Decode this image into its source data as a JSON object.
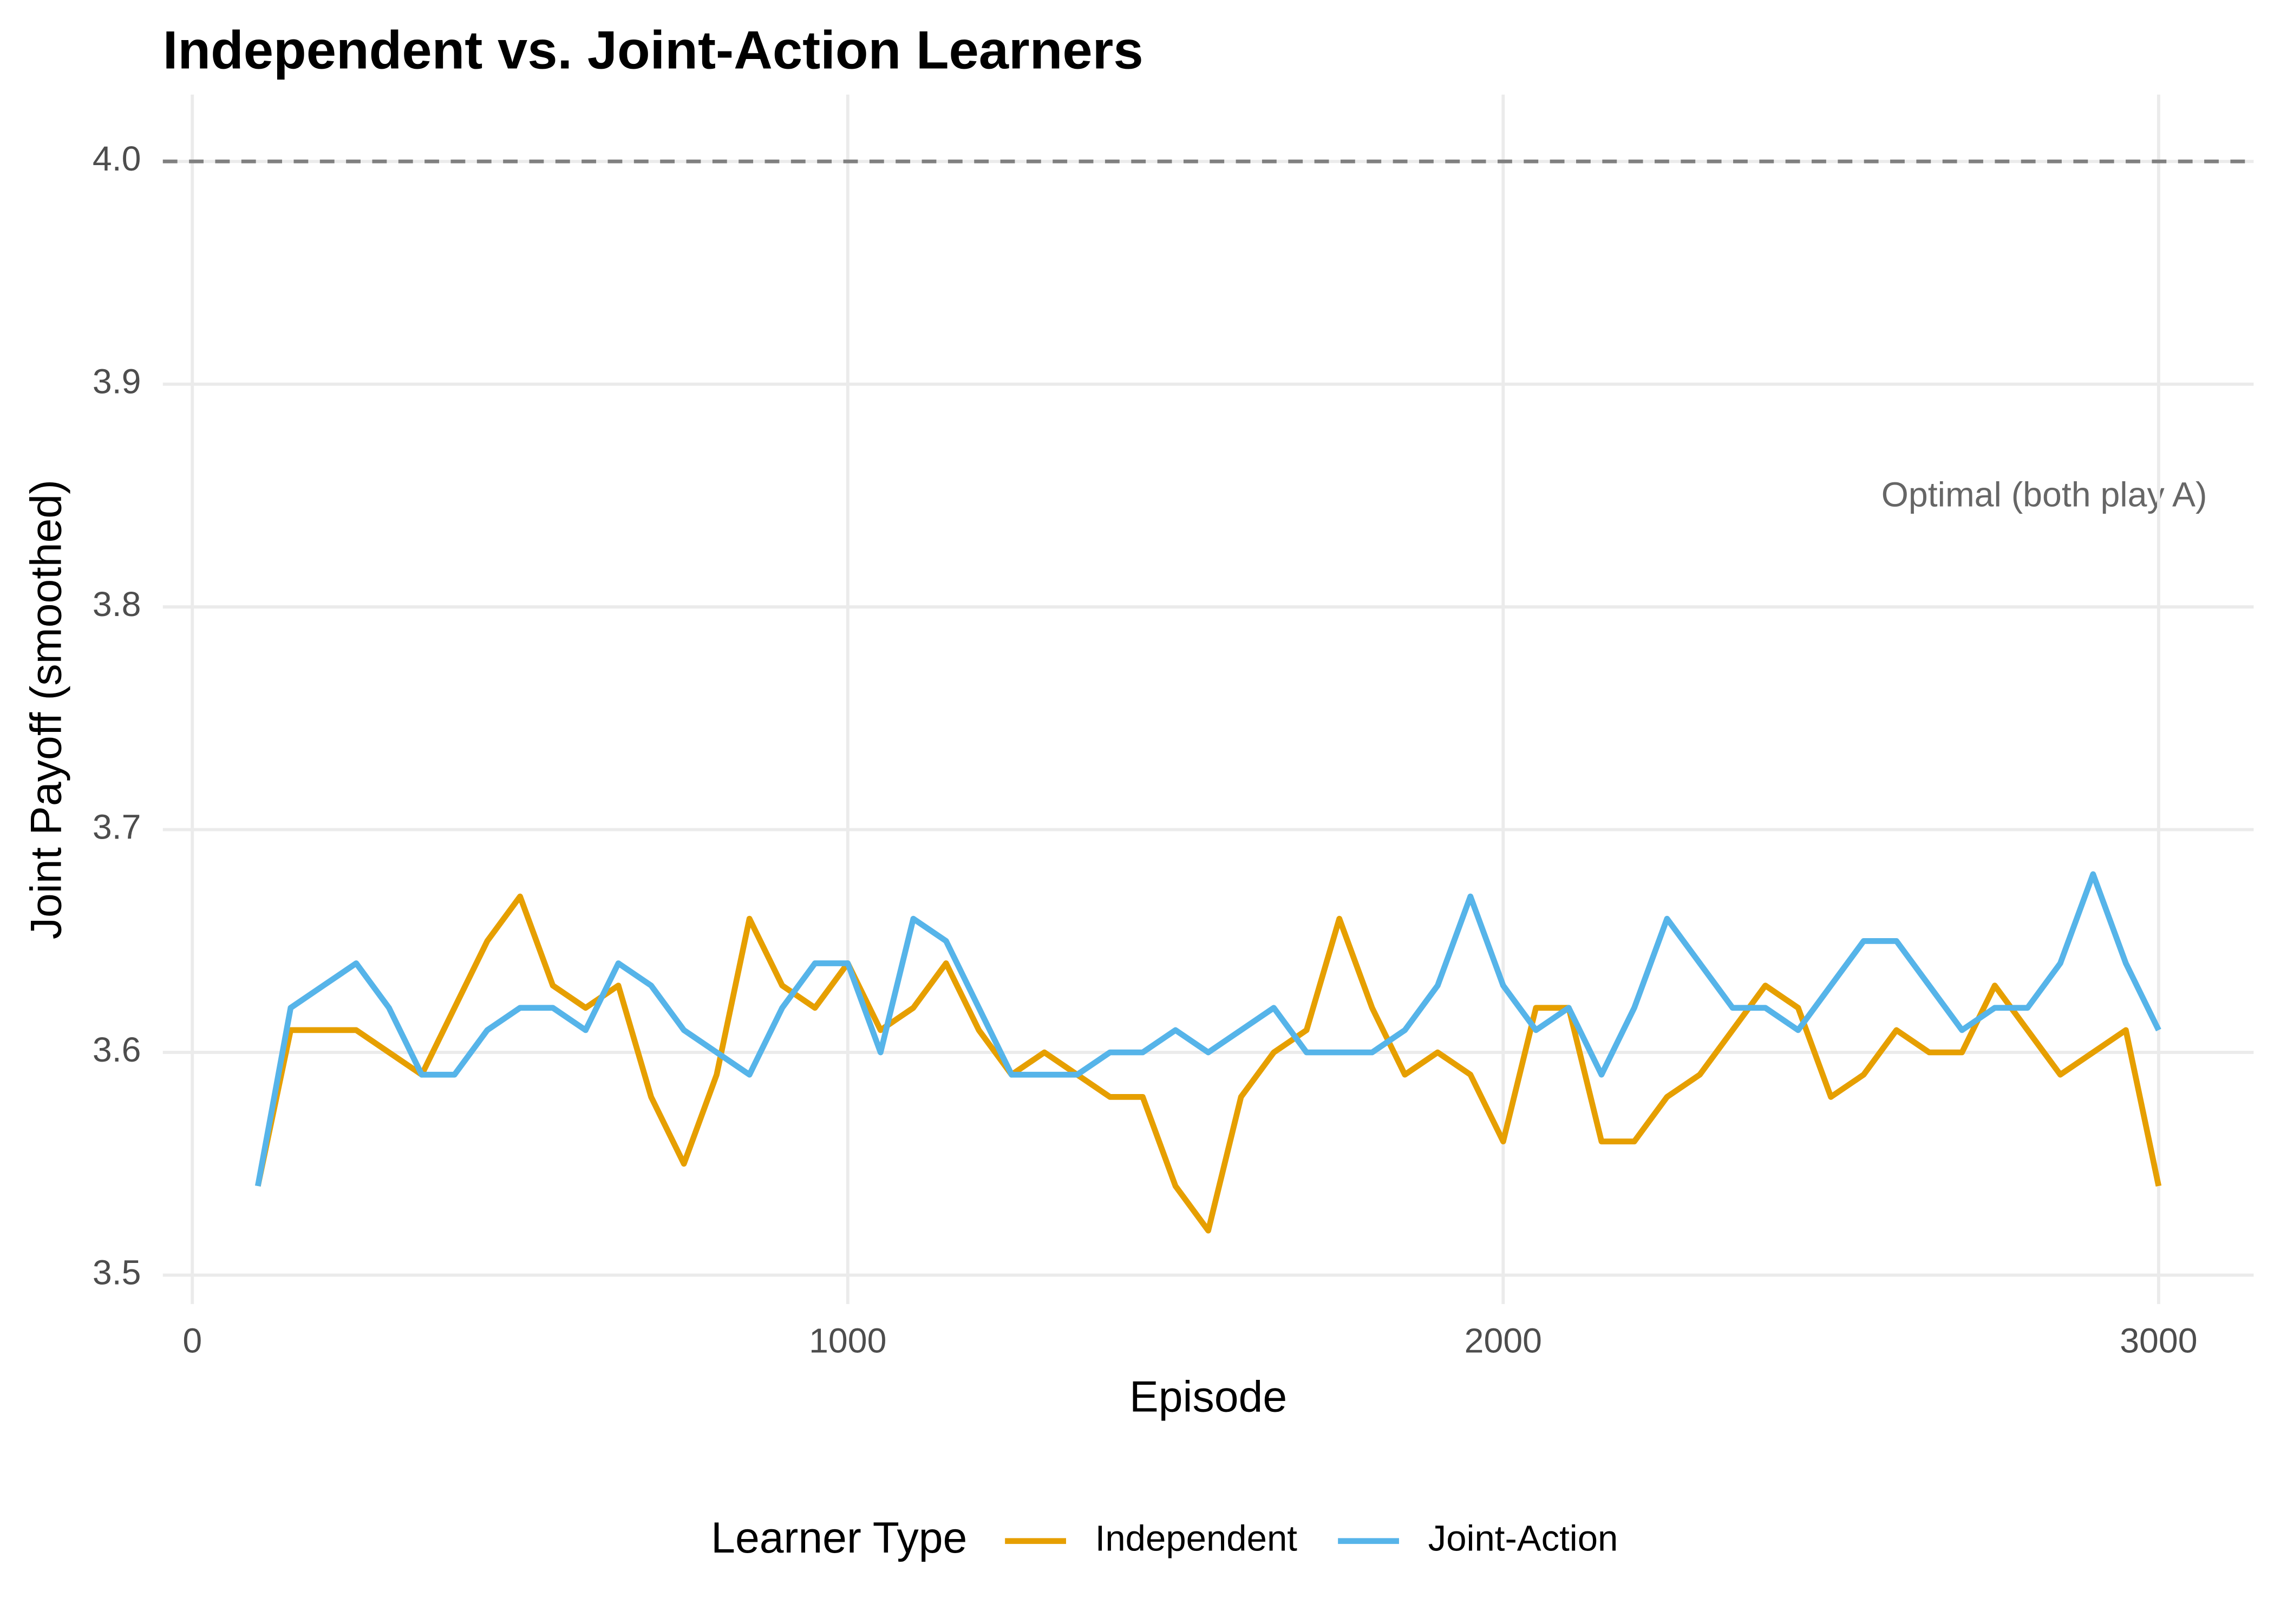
{
  "chart_data": {
    "type": "line",
    "title": "Independent vs. Joint-Action Learners",
    "x_label": "Episode",
    "y_label": "Joint Payoff (smoothed)",
    "legend_title": "Learner Type",
    "legend": "bottom",
    "grid": true,
    "annotation": "Optimal (both play A)",
    "hline": 4,
    "hline_color": "#808080",
    "xlim": [
      -45,
      3145
    ],
    "ylim": [
      3.487,
      4.03
    ],
    "xticks": [
      0,
      1000,
      2000,
      3000
    ],
    "yticks": [
      3.5,
      3.6,
      3.7,
      3.8,
      3.9,
      {
        "value": 4,
        "label": "4.0"
      }
    ],
    "x": [
      100,
      150,
      200,
      250,
      300,
      350,
      400,
      450,
      500,
      550,
      600,
      650,
      700,
      750,
      800,
      850,
      900,
      950,
      1000,
      1050,
      1100,
      1150,
      1200,
      1250,
      1300,
      1350,
      1400,
      1450,
      1500,
      1550,
      1600,
      1650,
      1700,
      1750,
      1800,
      1850,
      1900,
      1950,
      2000,
      2050,
      2100,
      2150,
      2200,
      2250,
      2300,
      2350,
      2400,
      2450,
      2500,
      2550,
      2600,
      2650,
      2700,
      2750,
      2800,
      2850,
      2900,
      2950,
      3000
    ],
    "series": [
      {
        "name": "Independent",
        "color": "#E69F00",
        "values": [
          3.54,
          3.61,
          3.61,
          3.61,
          3.6,
          3.59,
          3.62,
          3.65,
          3.67,
          3.63,
          3.62,
          3.63,
          3.58,
          3.55,
          3.59,
          3.66,
          3.63,
          3.62,
          3.64,
          3.61,
          3.62,
          3.64,
          3.61,
          3.59,
          3.6,
          3.59,
          3.58,
          3.58,
          3.54,
          3.52,
          3.58,
          3.6,
          3.61,
          3.66,
          3.62,
          3.59,
          3.6,
          3.59,
          3.56,
          3.62,
          3.62,
          3.56,
          3.56,
          3.58,
          3.59,
          3.61,
          3.63,
          3.62,
          3.58,
          3.59,
          3.61,
          3.6,
          3.6,
          3.63,
          3.61,
          3.59,
          3.6,
          3.61,
          3.54
        ]
      },
      {
        "name": "Joint-Action",
        "color": "#56B4E9",
        "values": [
          3.54,
          3.62,
          3.63,
          3.64,
          3.62,
          3.59,
          3.59,
          3.61,
          3.62,
          3.62,
          3.61,
          3.64,
          3.63,
          3.61,
          3.6,
          3.59,
          3.62,
          3.64,
          3.64,
          3.6,
          3.66,
          3.65,
          3.62,
          3.59,
          3.59,
          3.59,
          3.6,
          3.6,
          3.61,
          3.6,
          3.61,
          3.62,
          3.6,
          3.6,
          3.6,
          3.61,
          3.63,
          3.67,
          3.63,
          3.61,
          3.62,
          3.59,
          3.62,
          3.66,
          3.64,
          3.62,
          3.62,
          3.61,
          3.63,
          3.65,
          3.65,
          3.63,
          3.61,
          3.62,
          3.62,
          3.64,
          3.68,
          3.64,
          3.61
        ]
      }
    ]
  }
}
